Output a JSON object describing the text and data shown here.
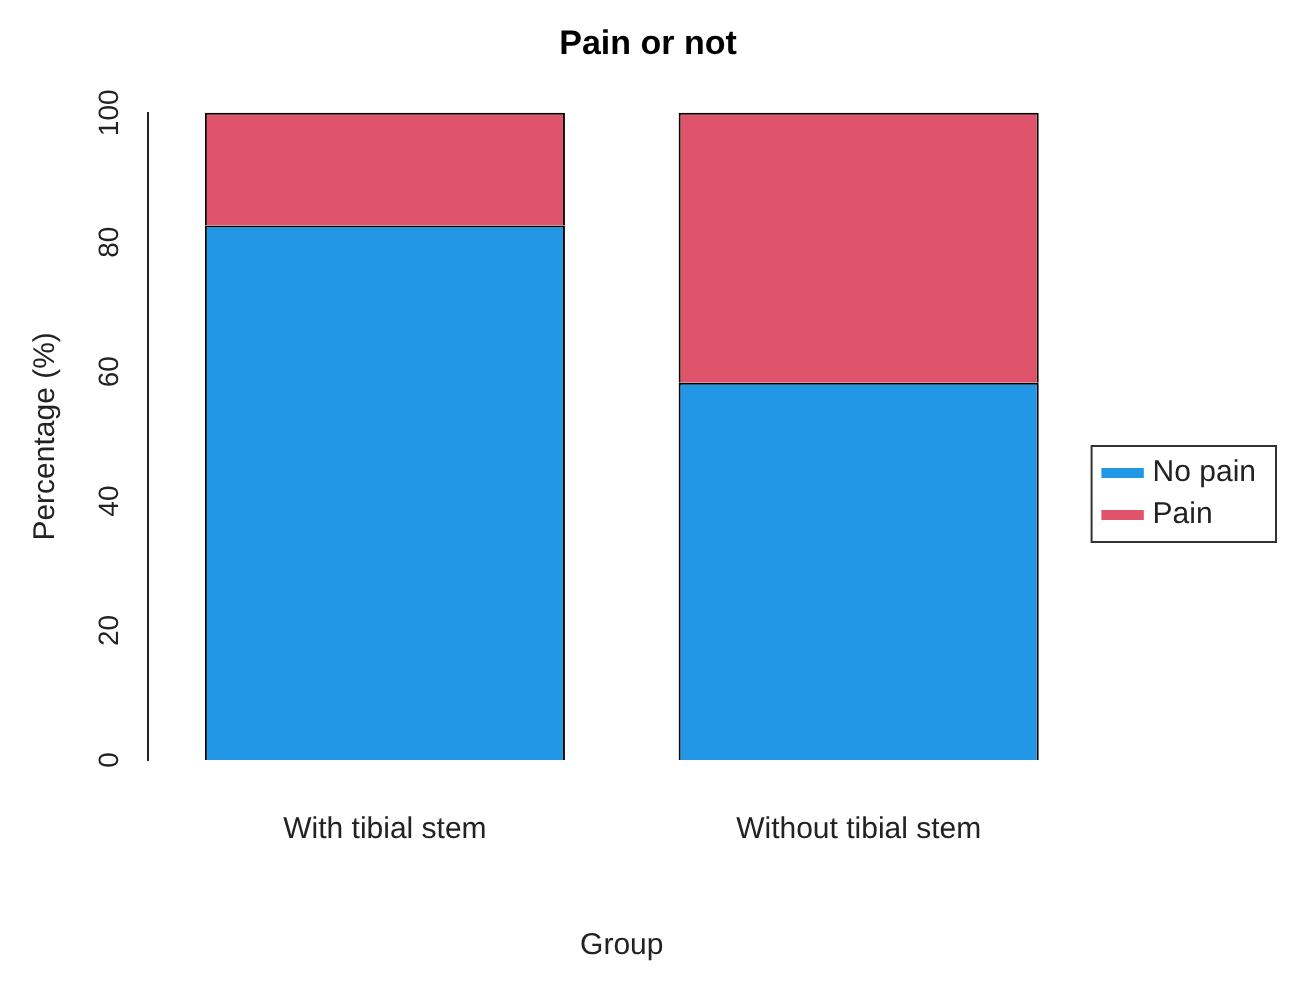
{
  "chart_data": {
    "type": "bar",
    "title": "Pain or not",
    "xlabel": "Group",
    "ylabel": "Percentage (%)",
    "categories": [
      "With tibial stem",
      "Without tibial stem"
    ],
    "series": [
      {
        "name": "No pain",
        "color": "#2297e6",
        "values": [
          82.6,
          58.3
        ]
      },
      {
        "name": "Pain",
        "color": "#df536b",
        "values": [
          17.4,
          41.7
        ]
      }
    ],
    "stacked": true,
    "ylim": [
      0,
      100
    ],
    "yticks": [
      0,
      20,
      40,
      60,
      80,
      100
    ],
    "grid": false,
    "legend": "right"
  }
}
